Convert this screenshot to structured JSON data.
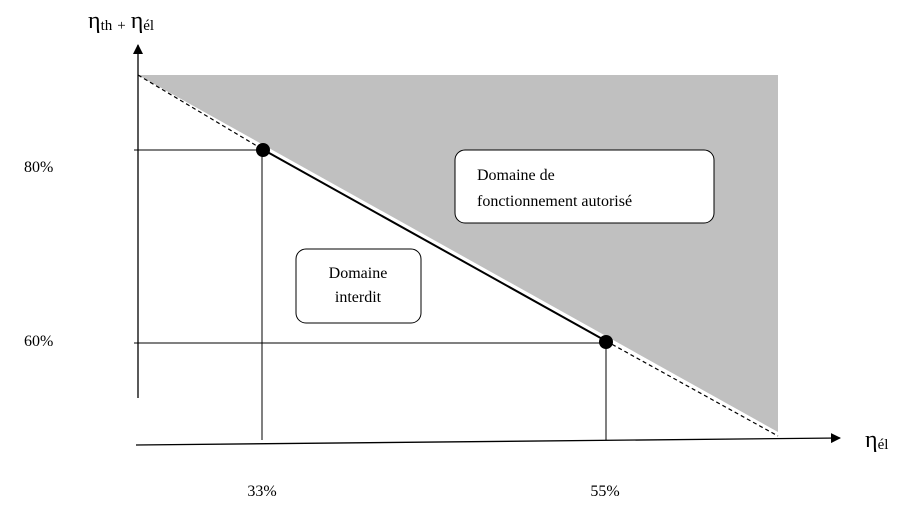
{
  "colors": {
    "authorized_fill": "#c0c0c0",
    "line": "#000000",
    "background": "#ffffff"
  },
  "y_axis": {
    "eta_main": "η",
    "sub_th": "th",
    "plus": "+",
    "sub_el": "él",
    "ticks": [
      "80%",
      "60%"
    ]
  },
  "x_axis": {
    "eta": "η",
    "sub_el": "él",
    "ticks": [
      "33%",
      "55%"
    ]
  },
  "regions": {
    "authorized": {
      "line1": "Domaine de",
      "line2": "fonctionnement autorisé"
    },
    "forbidden": {
      "line1": "Domaine",
      "line2": "interdit"
    }
  },
  "points": [
    {
      "x_label": "33%",
      "y_label": "80%"
    },
    {
      "x_label": "55%",
      "y_label": "60%"
    }
  ]
}
